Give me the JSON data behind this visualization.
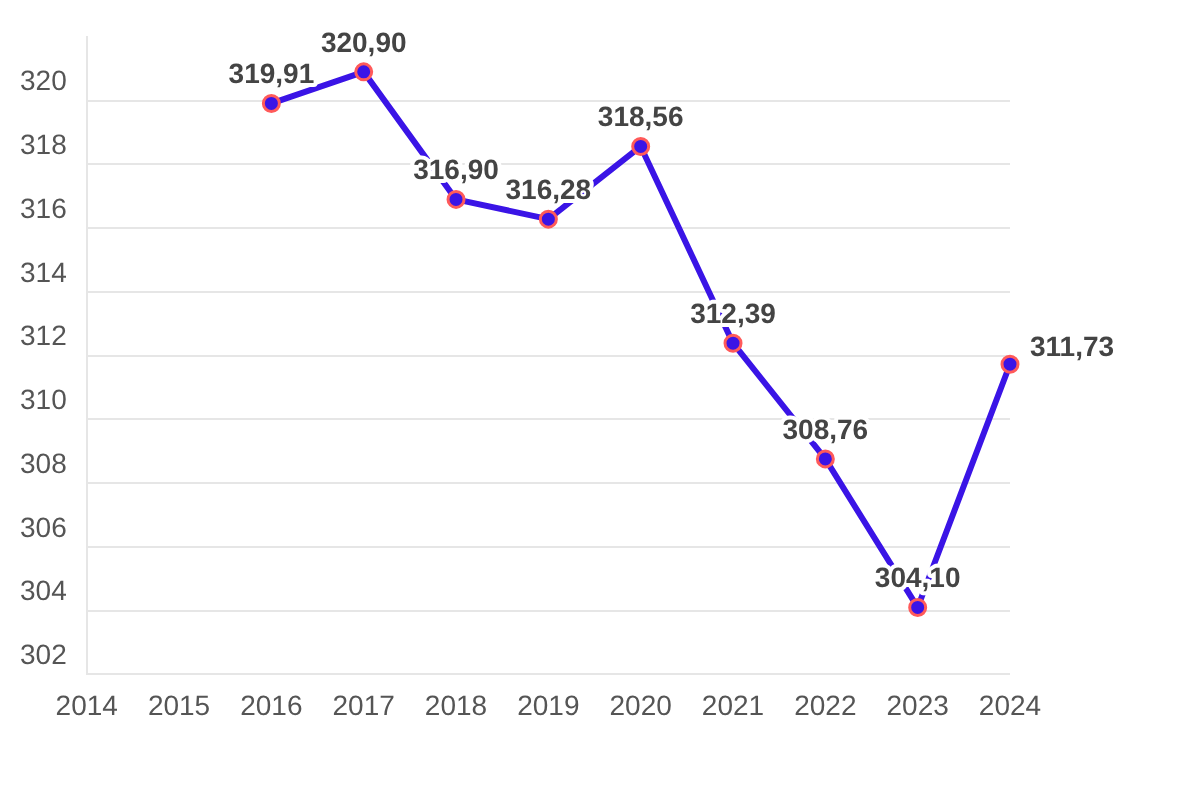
{
  "chart_data": {
    "type": "line",
    "categories": [
      "2014",
      "2015",
      "2016",
      "2017",
      "2018",
      "2019",
      "2020",
      "2021",
      "2022",
      "2023",
      "2024"
    ],
    "series": [
      {
        "color": "#3a14e6",
        "values": [
          null,
          null,
          319.91,
          320.9,
          316.9,
          316.28,
          318.56,
          312.39,
          308.76,
          304.1,
          311.73
        ],
        "value_labels": [
          null,
          null,
          "319,91",
          "320,90",
          "316,90",
          "316,28",
          "318,56",
          "312,39",
          "308,76",
          "304,10",
          "311,73"
        ]
      }
    ],
    "ylim": [
      302,
      322
    ],
    "yticks": [
      302,
      304,
      306,
      308,
      310,
      312,
      314,
      316,
      318,
      320
    ],
    "grid": "y",
    "legend": false,
    "marker": "circle",
    "line_style": "solid"
  }
}
